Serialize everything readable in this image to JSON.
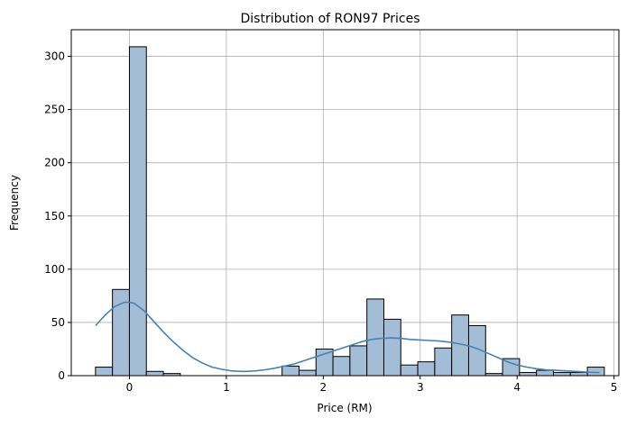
{
  "chart_data": {
    "type": "histogram",
    "title": "Distribution of RON97 Prices",
    "xlabel": "Price (RM)",
    "ylabel": "Frequency",
    "xlim": [
      -0.6,
      5.05
    ],
    "ylim": [
      0,
      325
    ],
    "xticks": [
      0,
      1,
      2,
      3,
      4,
      5
    ],
    "yticks": [
      0,
      50,
      100,
      150,
      200,
      250,
      300
    ],
    "grid": true,
    "bar_color": "#a3bdd6",
    "bar_edge_color": "#000000",
    "kde_color": "#4682b4",
    "bins": {
      "edges": [
        -0.35,
        -0.175,
        0.0,
        0.175,
        0.35,
        0.525,
        0.7,
        0.875,
        1.05,
        1.225,
        1.4,
        1.575,
        1.75,
        1.925,
        2.1,
        2.275,
        2.45,
        2.625,
        2.8,
        2.975,
        3.15,
        3.325,
        3.5,
        3.675,
        3.85,
        4.025,
        4.2,
        4.375,
        4.55,
        4.725,
        4.9
      ],
      "counts": [
        8,
        81,
        309,
        4,
        2,
        0,
        0,
        0,
        0,
        0,
        0,
        9,
        5,
        25,
        18,
        28,
        72,
        53,
        10,
        13,
        26,
        57,
        47,
        2,
        16,
        3,
        5,
        3,
        3,
        8
      ]
    },
    "kde": {
      "x": [
        -0.35,
        -0.25,
        -0.15,
        -0.05,
        0.0,
        0.05,
        0.15,
        0.25,
        0.35,
        0.45,
        0.55,
        0.65,
        0.75,
        0.85,
        0.95,
        1.05,
        1.15,
        1.2,
        1.3,
        1.4,
        1.5,
        1.6,
        1.7,
        1.8,
        1.9,
        2.0,
        2.1,
        2.2,
        2.3,
        2.4,
        2.5,
        2.6,
        2.7,
        2.8,
        2.9,
        3.0,
        3.1,
        3.2,
        3.3,
        3.4,
        3.5,
        3.6,
        3.7,
        3.8,
        3.9,
        4.0,
        4.1,
        4.2,
        4.3,
        4.4,
        4.5,
        4.6,
        4.7,
        4.8,
        4.85
      ],
      "y": [
        47,
        57,
        65,
        69,
        69,
        68,
        61,
        51,
        41,
        32,
        24,
        17,
        12,
        8,
        6,
        4.5,
        4,
        4,
        4.5,
        5.5,
        7,
        9,
        11,
        14,
        17,
        20,
        23,
        26,
        29,
        32,
        34,
        35,
        35.5,
        35,
        34,
        33.5,
        33,
        32.5,
        31.5,
        30,
        28,
        25,
        21,
        17,
        13,
        10,
        8,
        6.5,
        5.5,
        5,
        4.5,
        4,
        3.5,
        3,
        3
      ]
    }
  }
}
